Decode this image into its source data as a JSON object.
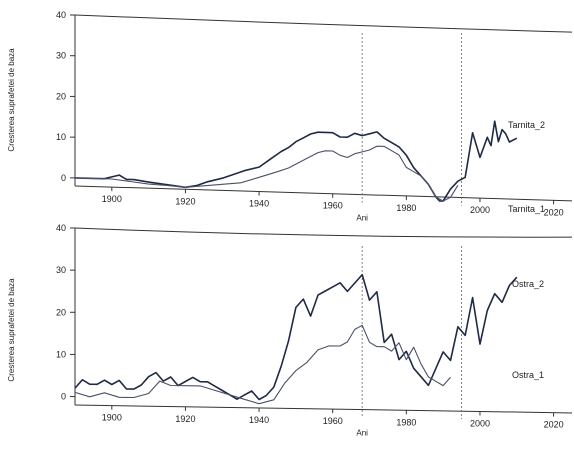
{
  "chart_data": [
    {
      "type": "line",
      "title": "",
      "xlabel": "Ani",
      "ylabel": "Cresterea suprafetei de baza",
      "xlim": [
        1890,
        2025
      ],
      "ylim": [
        -2,
        40
      ],
      "x_ticks": [
        1900,
        1920,
        1940,
        1960,
        1980,
        2000,
        2020
      ],
      "y_ticks": [
        0,
        10,
        20,
        30,
        40
      ],
      "vlines": [
        1968,
        1995
      ],
      "grid": false,
      "series": [
        {
          "name": "Tarnita_2",
          "color": "#1f2a44",
          "x": [
            1890,
            1895,
            1898,
            1900,
            1902,
            1904,
            1906,
            1910,
            1915,
            1920,
            1923,
            1926,
            1930,
            1933,
            1936,
            1940,
            1943,
            1946,
            1948,
            1950,
            1952,
            1954,
            1956,
            1958,
            1960,
            1962,
            1964,
            1966,
            1968,
            1970,
            1972,
            1974,
            1976,
            1978,
            1980,
            1982,
            1984,
            1986,
            1988,
            1989,
            1990,
            1992,
            1994,
            1996,
            1998,
            2000,
            2002,
            2003,
            2004,
            2005,
            2006,
            2007,
            2008,
            2010
          ],
          "y": [
            0,
            0,
            0,
            0.5,
            1,
            0,
            0,
            -0.5,
            -1,
            -1.5,
            -1,
            0,
            1,
            2,
            3,
            4,
            6,
            8,
            9,
            10.5,
            11.5,
            12.5,
            13,
            13,
            13,
            12,
            12,
            13,
            12.5,
            13,
            13.5,
            12,
            11,
            10,
            8,
            5,
            3,
            1,
            -2,
            -3,
            -3,
            0,
            2,
            3,
            14,
            8,
            13,
            11,
            17,
            12,
            15,
            14,
            12,
            13
          ]
        },
        {
          "name": "Tarnita_1",
          "color": "#4a5068",
          "x": [
            1890,
            1900,
            1905,
            1910,
            1915,
            1920,
            1925,
            1930,
            1935,
            1940,
            1945,
            1948,
            1950,
            1953,
            1956,
            1958,
            1960,
            1962,
            1964,
            1966,
            1968,
            1970,
            1972,
            1974,
            1976,
            1978,
            1980,
            1982,
            1984,
            1986,
            1988,
            1990,
            1992,
            1994
          ],
          "y": [
            0,
            0,
            -0.5,
            -1,
            -1.2,
            -1.5,
            -1,
            -0.5,
            0,
            1.5,
            3,
            4,
            5,
            6.5,
            8,
            8.5,
            8.5,
            7.5,
            7,
            8,
            8.5,
            9,
            10,
            10,
            9,
            8,
            5,
            4,
            3,
            1,
            -2,
            -3,
            -2,
            1
          ]
        }
      ]
    },
    {
      "type": "line",
      "title": "",
      "xlabel": "Ani",
      "ylabel": "Cresterea suprafetei de baza",
      "xlim": [
        1890,
        2025
      ],
      "ylim": [
        -2,
        40
      ],
      "x_ticks": [
        1900,
        1920,
        1940,
        1960,
        1980,
        2000,
        2020
      ],
      "y_ticks": [
        0,
        10,
        20,
        30,
        40
      ],
      "vlines": [
        1968,
        1995
      ],
      "grid": false,
      "series": [
        {
          "name": "Ostra_2",
          "color": "#1f2a44",
          "x": [
            1890,
            1892,
            1894,
            1896,
            1898,
            1900,
            1902,
            1904,
            1906,
            1908,
            1910,
            1912,
            1914,
            1916,
            1918,
            1920,
            1922,
            1924,
            1926,
            1928,
            1930,
            1932,
            1934,
            1936,
            1938,
            1940,
            1942,
            1944,
            1946,
            1948,
            1950,
            1952,
            1954,
            1956,
            1958,
            1960,
            1962,
            1964,
            1966,
            1967,
            1968,
            1970,
            1972,
            1974,
            1976,
            1978,
            1980,
            1982,
            1984,
            1986,
            1988,
            1990,
            1992,
            1994,
            1996,
            1998,
            2000,
            2002,
            2004,
            2006,
            2008,
            2010
          ],
          "y": [
            2,
            4,
            3,
            3,
            4,
            3,
            4,
            2,
            2,
            3,
            5,
            6,
            4,
            5,
            3,
            4,
            5,
            4,
            4,
            3,
            2,
            1,
            0,
            1,
            2,
            0,
            1,
            3,
            8,
            14,
            22,
            24,
            20,
            25,
            26,
            27,
            28,
            26,
            28,
            29,
            30,
            24,
            26,
            14,
            16,
            10,
            12,
            8,
            6,
            4,
            8,
            12,
            10,
            18,
            16,
            25,
            14,
            22,
            26,
            24,
            28,
            30
          ]
        },
        {
          "name": "Ostra_1",
          "color": "#4a5068",
          "x": [
            1890,
            1894,
            1898,
            1902,
            1906,
            1910,
            1913,
            1916,
            1920,
            1924,
            1928,
            1932,
            1936,
            1940,
            1944,
            1947,
            1950,
            1953,
            1956,
            1959,
            1962,
            1964,
            1966,
            1968,
            1970,
            1972,
            1974,
            1976,
            1978,
            1980,
            1982,
            1984,
            1986,
            1988,
            1990,
            1992
          ],
          "y": [
            1,
            0,
            1,
            0,
            0,
            1,
            4,
            3,
            3,
            3,
            2,
            1,
            0,
            -1,
            0,
            4,
            7,
            9,
            12,
            13,
            13,
            14,
            17,
            18,
            14,
            13,
            13,
            12,
            14,
            10,
            13,
            9,
            6,
            5,
            4,
            6
          ]
        }
      ]
    }
  ]
}
